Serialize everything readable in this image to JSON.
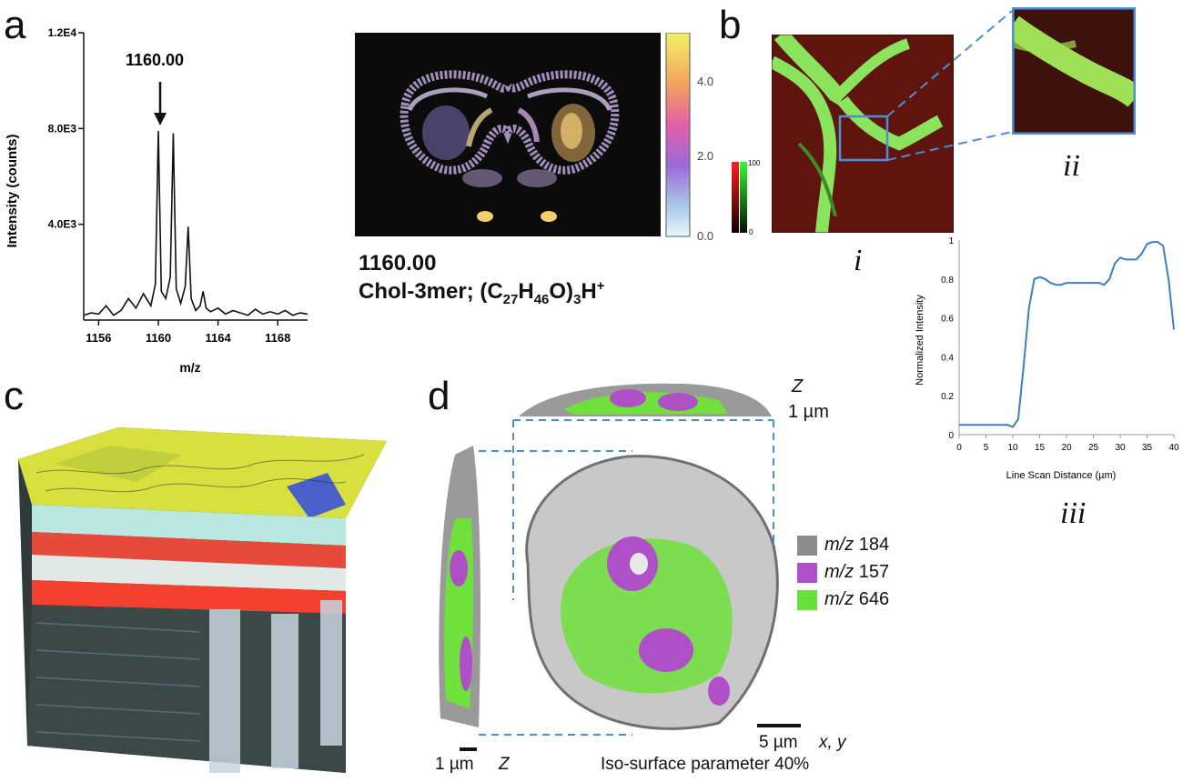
{
  "panels": {
    "a": {
      "letter": "a",
      "peak_label": "1160.00",
      "ion_mz": "1160.00",
      "ion_formula": {
        "prefix": "Chol-3mer; (C",
        "sub1": "27",
        "mid1": "H",
        "sub2": "46",
        "mid2": "O)",
        "sub3": "3",
        "mid3": "H",
        "sup": "+"
      },
      "colorbar_ticks": [
        "4.0",
        "2.0",
        "0.0"
      ]
    },
    "b": {
      "letter": "b",
      "label_i": "i",
      "label_ii": "ii",
      "label_iii": "iii",
      "scale_ticks": [
        "100",
        "0"
      ]
    },
    "c": {
      "letter": "c"
    },
    "d": {
      "letter": "d",
      "z_label": "Z",
      "z_scale": "1 µm",
      "z_side_scale": "1 µm",
      "z_side_label": "Z",
      "xy_scale": "5 µm",
      "xy_label": "x, y",
      "iso_label": "Iso-surface parameter 40%",
      "legend": [
        {
          "prefix": "m/z",
          "value": "184",
          "color": "#8c8c8c"
        },
        {
          "prefix": "m/z",
          "value": "157",
          "color": "#b050c8"
        },
        {
          "prefix": "m/z",
          "value": "646",
          "color": "#66e03a"
        }
      ]
    }
  },
  "chart_data": [
    {
      "type": "line",
      "title": "",
      "xlabel": "m/z",
      "ylabel": "Intensity (counts)",
      "xlim": [
        1155,
        1170
      ],
      "ylim": [
        0,
        12000
      ],
      "xticks": [
        1156,
        1160,
        1164,
        1168
      ],
      "xtick_labels": [
        "1156",
        "1160",
        "1164",
        "1168"
      ],
      "yticks": [
        4000,
        8000,
        12000
      ],
      "ytick_labels": [
        "4.0E3",
        "8.0E3",
        "1.2E4"
      ],
      "annotation": {
        "text": "1160.00",
        "x": 1160
      },
      "x": [
        1155.0,
        1155.5,
        1156.0,
        1156.5,
        1157.0,
        1157.5,
        1158.0,
        1158.5,
        1159.0,
        1159.5,
        1159.8,
        1160.0,
        1160.2,
        1160.5,
        1160.8,
        1161.0,
        1161.2,
        1161.5,
        1161.8,
        1162.0,
        1162.2,
        1162.5,
        1162.8,
        1163.0,
        1163.2,
        1163.5,
        1164.0,
        1164.5,
        1165.0,
        1165.5,
        1166.0,
        1166.5,
        1167.0,
        1167.5,
        1168.0,
        1168.5,
        1169.0,
        1169.5,
        1170.0
      ],
      "y": [
        200,
        300,
        250,
        600,
        200,
        400,
        900,
        500,
        1100,
        600,
        1500,
        7900,
        1200,
        900,
        1800,
        7800,
        1300,
        700,
        1400,
        3900,
        900,
        400,
        600,
        1200,
        500,
        350,
        500,
        250,
        400,
        300,
        200,
        450,
        250,
        350,
        250,
        400,
        200,
        300,
        250
      ]
    },
    {
      "type": "line",
      "title": "",
      "xlabel": "Line Scan Distance (µm)",
      "ylabel": "Normalized Intensity",
      "xlim": [
        0,
        40
      ],
      "ylim": [
        0,
        1
      ],
      "xticks": [
        0,
        5,
        10,
        15,
        20,
        25,
        30,
        35,
        40
      ],
      "yticks": [
        0,
        0.2,
        0.4,
        0.6,
        0.8,
        1
      ],
      "ytick_labels": [
        "0",
        "0.2",
        "0.4",
        "0.6",
        "0.8",
        "1"
      ],
      "series": [
        {
          "x": [
            0,
            5,
            9,
            10,
            11,
            12,
            13,
            14,
            15,
            16,
            17,
            18,
            19,
            20,
            22,
            24,
            26,
            27,
            28,
            29,
            30,
            31,
            32,
            33,
            34,
            35,
            36,
            37,
            38,
            39,
            40
          ],
          "y": [
            0.05,
            0.05,
            0.05,
            0.04,
            0.08,
            0.35,
            0.65,
            0.8,
            0.81,
            0.8,
            0.78,
            0.77,
            0.77,
            0.78,
            0.78,
            0.78,
            0.78,
            0.77,
            0.8,
            0.88,
            0.91,
            0.9,
            0.9,
            0.9,
            0.93,
            0.98,
            0.99,
            0.99,
            0.97,
            0.8,
            0.54
          ],
          "color": "#3b7fc4"
        }
      ]
    }
  ]
}
